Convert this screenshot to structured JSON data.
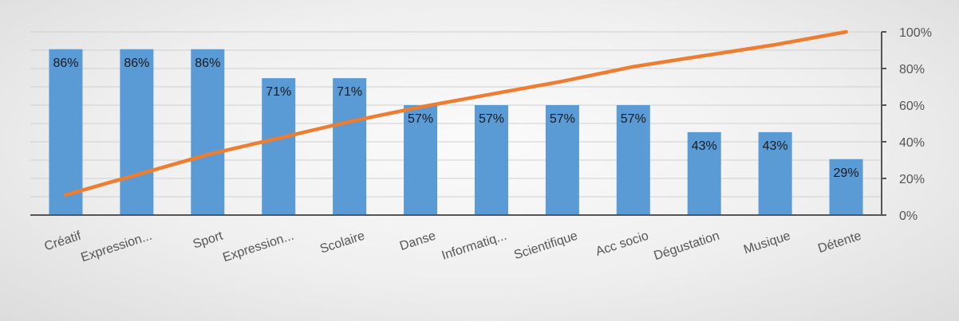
{
  "chart_data": {
    "type": "bar",
    "categories": [
      "Créatif",
      "Expression...",
      "Sport",
      "Expression...",
      "Scolaire",
      "Danse",
      "Informatiq...",
      "Scientifique",
      "Acc socio",
      "Dégustation",
      "Musique",
      "Détente"
    ],
    "series": [
      {
        "type": "bar",
        "values": [
          0.86,
          0.86,
          0.86,
          0.71,
          0.71,
          0.57,
          0.57,
          0.57,
          0.57,
          0.43,
          0.43,
          0.29
        ],
        "data_labels": [
          "86%",
          "86%",
          "86%",
          "71%",
          "71%",
          "57%",
          "57%",
          "57%",
          "57%",
          "43%",
          "43%",
          "29%"
        ],
        "color": "#5b9bd5"
      },
      {
        "type": "line",
        "axis": "right",
        "values": [
          0.11,
          0.22,
          0.33,
          0.42,
          0.51,
          0.59,
          0.66,
          0.73,
          0.81,
          0.87,
          0.93,
          1.0
        ],
        "color": "#ed7d31"
      }
    ],
    "primary_ylim": [
      0,
      0.95
    ],
    "secondary_ylim": [
      0,
      1.0
    ],
    "y2_ticks": [
      "0%",
      "20%",
      "40%",
      "60%",
      "80%",
      "100%"
    ],
    "gridlines": true,
    "legend": "none",
    "title": "",
    "xlabel": "",
    "ylabel": ""
  }
}
